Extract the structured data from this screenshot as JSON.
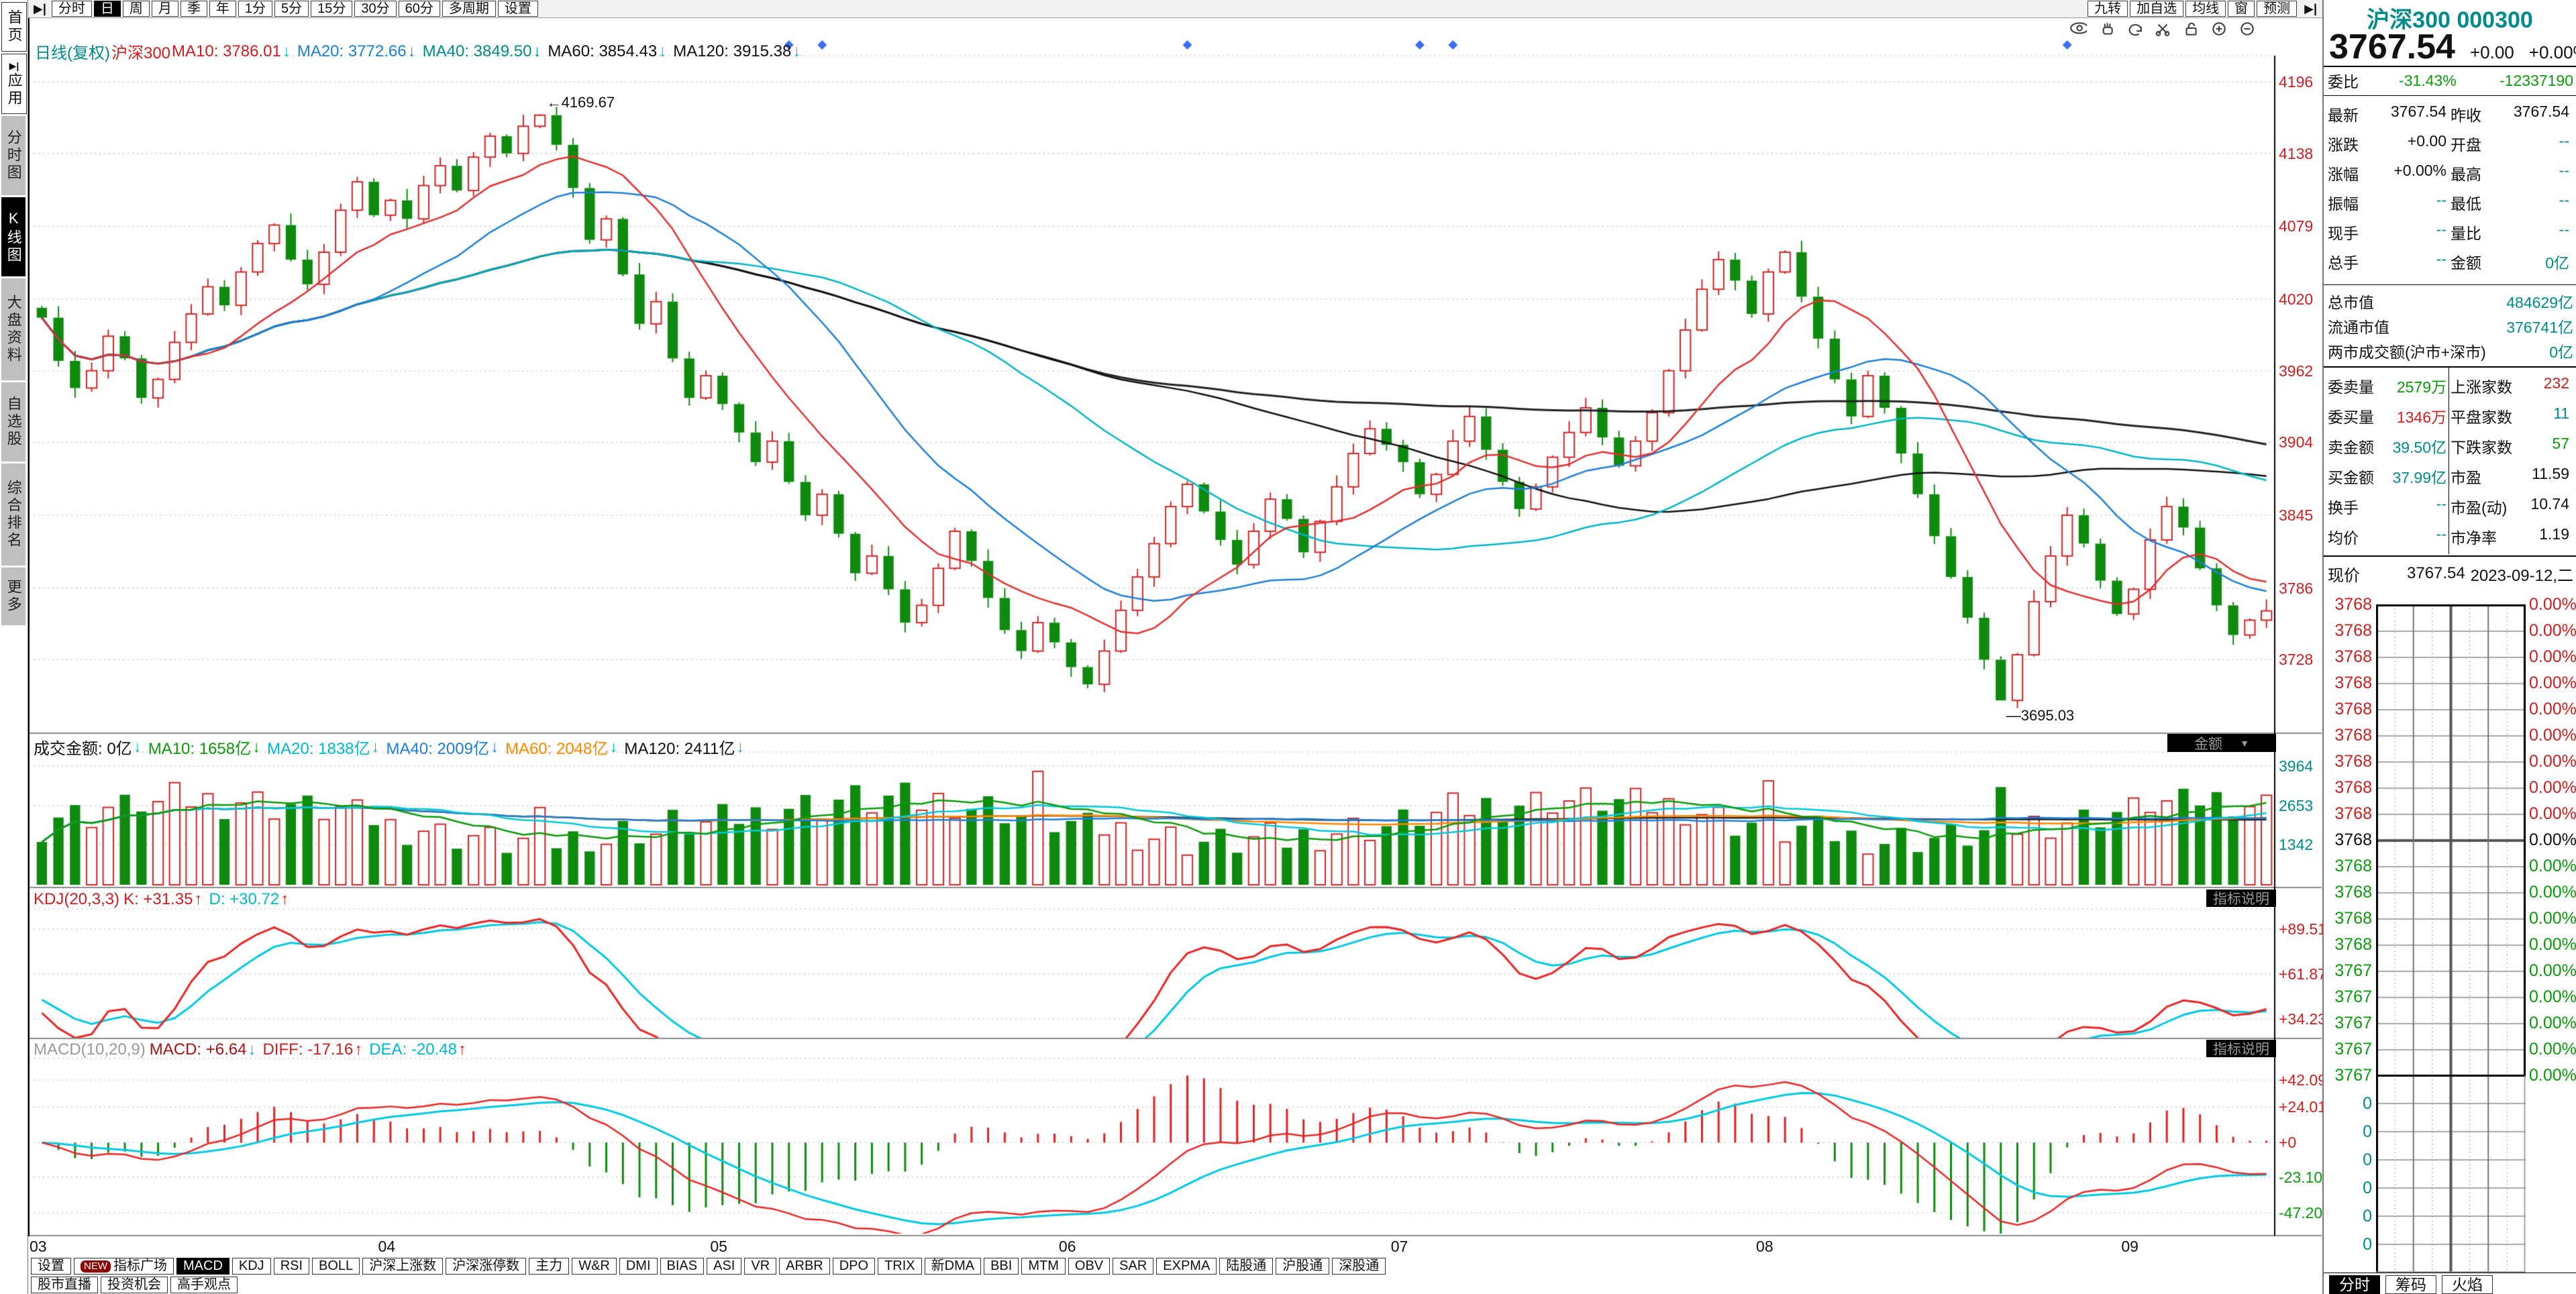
{
  "colors": {
    "red": "#cc2020",
    "green": "#0a9a0a",
    "teal": "#008b8b",
    "black": "#111111",
    "blue": "#1e7fd6",
    "cyan": "#00b8d0",
    "orange": "#ff8800",
    "gray": "#999999",
    "darkred": "#aa1111",
    "up": "#cf2525",
    "down": "#0e8a0e",
    "axis_red": "#cc2020",
    "grid": "#b0b0b0"
  },
  "top_toolbar": {
    "nav_icon": "▶|",
    "tabs": [
      "分时",
      "日",
      "周",
      "月",
      "季",
      "年",
      "1分",
      "5分",
      "15分",
      "30分",
      "60分",
      "多周期",
      "设置"
    ],
    "active_tab": "日",
    "right_tabs": [
      "九转",
      "加自选",
      "均线",
      "窗",
      "预测"
    ],
    "right_icon": "▶|",
    "tool_icons": [
      "eye",
      "hand",
      "undo",
      "scissors",
      "lock",
      "zoom-in",
      "zoom-out"
    ]
  },
  "sidebar": {
    "items": [
      {
        "label": "首页",
        "style": "boxed"
      },
      {
        "label": "应用",
        "style": "boxed",
        "icon": "▶|"
      },
      {
        "label": "分时图",
        "style": "gray"
      },
      {
        "label": "K线图",
        "style": "active"
      },
      {
        "label": "大盘资料",
        "style": "gray"
      },
      {
        "label": "自选股",
        "style": "gray"
      },
      {
        "label": "综合排名",
        "style": "gray"
      },
      {
        "label": "更多",
        "style": "gray"
      }
    ]
  },
  "main_header": {
    "items": [
      {
        "text": "日线(复权)",
        "color": "teal"
      },
      {
        "text": "沪深300",
        "color": "red"
      },
      {
        "text": "MA10: 3786.01",
        "color": "red",
        "arrow": "↓",
        "arrow_color": "cyan"
      },
      {
        "text": "MA20: 3772.66",
        "color": "blue",
        "arrow": "↓",
        "arrow_color": "blue"
      },
      {
        "text": "MA40: 3849.50",
        "color": "teal",
        "arrow": "↓",
        "arrow_color": "teal"
      },
      {
        "text": "MA60: 3854.43",
        "color": "black",
        "arrow": "↓",
        "arrow_color": "cyan"
      },
      {
        "text": "MA120: 3915.38",
        "color": "black",
        "arrow": "↓",
        "arrow_color": "cyan"
      }
    ]
  },
  "indicator_headers": {
    "volume": {
      "items": [
        {
          "text": "成交金额: 0亿",
          "color": "black",
          "arrow": "↓",
          "arrow_color": "cyan"
        },
        {
          "text": "MA10: 1658亿",
          "color": "green",
          "arrow": "↓",
          "arrow_color": "green"
        },
        {
          "text": "MA20: 1838亿",
          "color": "cyan",
          "arrow": "↓",
          "arrow_color": "cyan"
        },
        {
          "text": "MA40: 2009亿",
          "color": "blue",
          "arrow": "↓",
          "arrow_color": "blue"
        },
        {
          "text": "MA60: 2048亿",
          "color": "orange",
          "arrow": "↓",
          "arrow_color": "cyan"
        },
        {
          "text": "MA120: 2411亿",
          "color": "black",
          "arrow": "↓",
          "arrow_color": "cyan"
        }
      ],
      "dropdown": "金额"
    },
    "kdj": {
      "label": "KDJ(20,3,3)",
      "label_color": "red",
      "items": [
        {
          "text": "K: +31.35",
          "color": "red",
          "arrow": "↑",
          "arrow_color": "red"
        },
        {
          "text": "D: +30.72",
          "color": "cyan",
          "arrow": "↑",
          "arrow_color": "red"
        }
      ],
      "badge": "指标说明"
    },
    "macd": {
      "label": "MACD(10,20,9)",
      "label_color": "gray",
      "items": [
        {
          "text": "MACD: +6.64",
          "color": "darkred",
          "arrow": "↓",
          "arrow_color": "cyan"
        },
        {
          "text": "DIFF: -17.16",
          "color": "red",
          "arrow": "↑",
          "arrow_color": "red"
        },
        {
          "text": "DEA: -20.48",
          "color": "cyan",
          "arrow": "↑",
          "arrow_color": "red"
        }
      ],
      "badge": "指标说明"
    }
  },
  "axes": {
    "main": [
      4196,
      4138,
      4079,
      4020,
      3962,
      3904,
      3845,
      3786,
      3728
    ],
    "volume": [
      3964,
      2653,
      1342
    ],
    "kdj": [
      "+89.51",
      "+61.87",
      "+34.23"
    ],
    "kdj_values": [
      89.51,
      61.87,
      34.23
    ],
    "macd": [
      {
        "t": "+42.09",
        "c": "red",
        "v": 42.09
      },
      {
        "t": "+24.01",
        "c": "red",
        "v": 24.01
      },
      {
        "t": "+0",
        "c": "red",
        "v": 0
      },
      {
        "t": "-23.10",
        "c": "green",
        "v": -23.1
      },
      {
        "t": "-47.20",
        "c": "green",
        "v": -47.2
      }
    ]
  },
  "chart_data": {
    "type": "candlestick",
    "symbol": "沪深300",
    "period": "日线(复权)",
    "closes": [
      4005,
      3970,
      3948,
      3962,
      3990,
      3972,
      3940,
      3955,
      3985,
      4008,
      4030,
      4015,
      4042,
      4065,
      4080,
      4052,
      4032,
      4058,
      4092,
      4115,
      4088,
      4100,
      4085,
      4112,
      4128,
      4108,
      4135,
      4152,
      4138,
      4160,
      4169,
      4145,
      4110,
      4068,
      4085,
      4040,
      4000,
      4018,
      3972,
      3940,
      3958,
      3935,
      3912,
      3888,
      3905,
      3872,
      3845,
      3862,
      3830,
      3798,
      3812,
      3785,
      3758,
      3772,
      3802,
      3832,
      3808,
      3778,
      3752,
      3735,
      3758,
      3742,
      3722,
      3708,
      3735,
      3768,
      3795,
      3822,
      3852,
      3870,
      3848,
      3825,
      3805,
      3832,
      3858,
      3842,
      3815,
      3840,
      3868,
      3895,
      3915,
      3902,
      3888,
      3862,
      3878,
      3905,
      3925,
      3898,
      3872,
      3850,
      3868,
      3892,
      3912,
      3932,
      3908,
      3885,
      3905,
      3928,
      3962,
      3995,
      4028,
      4052,
      4035,
      4008,
      4042,
      4058,
      4022,
      3988,
      3955,
      3925,
      3958,
      3932,
      3895,
      3862,
      3828,
      3795,
      3762,
      3728,
      3695,
      3732,
      3775,
      3812,
      3845,
      3822,
      3792,
      3765,
      3785,
      3825,
      3852,
      3835,
      3802,
      3772,
      3748,
      3760,
      3767.54
    ],
    "high_overrides": {
      "30": 4169.67
    },
    "low_overrides": {
      "118": 3695.03
    },
    "months": [
      {
        "label": "03",
        "day": 0
      },
      {
        "label": "04",
        "day": 21
      },
      {
        "label": "05",
        "day": 41
      },
      {
        "label": "06",
        "day": 62
      },
      {
        "label": "07",
        "day": 82
      },
      {
        "label": "08",
        "day": 104
      },
      {
        "label": "09",
        "day": 126
      }
    ],
    "annotations": {
      "high": {
        "text": "←4169.67",
        "day": 30,
        "value": 4169.67
      },
      "low": {
        "text": "—3695.03",
        "day": 118,
        "value": 3695.03
      }
    },
    "diamond_days": [
      45,
      47,
      69,
      83,
      85,
      122
    ],
    "ylim": [
      3675,
      4215
    ],
    "volume_ylim": [
      0,
      4390
    ],
    "kdj_params": "20,3,3",
    "macd_params": "10,20,9"
  },
  "bottom_bar": {
    "row1": [
      {
        "label": "设置"
      },
      {
        "label": "指标广场",
        "badge": "NEW"
      },
      {
        "label": "MACD",
        "active": true
      },
      {
        "label": "KDJ"
      },
      {
        "label": "RSI"
      },
      {
        "label": "BOLL"
      },
      {
        "label": "沪深上涨数"
      },
      {
        "label": "沪深涨停数"
      },
      {
        "label": "主力"
      },
      {
        "label": "W&R"
      },
      {
        "label": "DMI"
      },
      {
        "label": "BIAS"
      },
      {
        "label": "ASI"
      },
      {
        "label": "VR"
      },
      {
        "label": "ARBR"
      },
      {
        "label": "DPO"
      },
      {
        "label": "TRIX"
      },
      {
        "label": "新DMA"
      },
      {
        "label": "BBI"
      },
      {
        "label": "MTM"
      },
      {
        "label": "OBV"
      },
      {
        "label": "SAR"
      },
      {
        "label": "EXPMA"
      },
      {
        "label": "陆股通"
      },
      {
        "label": "沪股通"
      },
      {
        "label": "深股通"
      }
    ],
    "row2": [
      {
        "label": "股市直播"
      },
      {
        "label": "投资机会"
      },
      {
        "label": "高手观点"
      }
    ]
  },
  "right_panel": {
    "stock_name": "沪深300",
    "stock_code": "000300",
    "price": "3767.54",
    "change": "+0.00",
    "change_pct": "+0.00%",
    "weibi": {
      "label": "委比",
      "value": "-31.43%",
      "diff": "-12337190"
    },
    "quote_rows": [
      [
        {
          "l": "最新",
          "v": "3767.54",
          "c": "black"
        },
        {
          "l": "昨收",
          "v": "3767.54",
          "c": "black"
        }
      ],
      [
        {
          "l": "涨跌",
          "v": "+0.00",
          "c": "black"
        },
        {
          "l": "开盘",
          "v": "--",
          "c": "teal"
        }
      ],
      [
        {
          "l": "涨幅",
          "v": "+0.00%",
          "c": "black"
        },
        {
          "l": "最高",
          "v": "--",
          "c": "teal"
        }
      ],
      [
        {
          "l": "振幅",
          "v": "--",
          "c": "teal"
        },
        {
          "l": "最低",
          "v": "--",
          "c": "teal"
        }
      ],
      [
        {
          "l": "现手",
          "v": "--",
          "c": "teal"
        },
        {
          "l": "量比",
          "v": "--",
          "c": "teal"
        }
      ],
      [
        {
          "l": "总手",
          "v": "--",
          "c": "teal"
        },
        {
          "l": "金额",
          "v": "0亿",
          "c": "teal"
        }
      ]
    ],
    "cap_rows": [
      {
        "l": "总市值",
        "v": "484629亿",
        "c": "teal"
      },
      {
        "l": "流通市值",
        "v": "376741亿",
        "c": "teal"
      },
      {
        "l": "两市成交额(沪市+深市)",
        "v": "0亿",
        "c": "teal"
      }
    ],
    "detail_rows": [
      [
        {
          "l": "委卖量",
          "v": "2579万",
          "c": "green"
        },
        {
          "l": "上涨家数",
          "v": "232",
          "c": "red"
        }
      ],
      [
        {
          "l": "委买量",
          "v": "1346万",
          "c": "red"
        },
        {
          "l": "平盘家数",
          "v": "11",
          "c": "teal"
        }
      ],
      [
        {
          "l": "卖金额",
          "v": "39.50亿",
          "c": "teal"
        },
        {
          "l": "下跌家数",
          "v": "57",
          "c": "green"
        }
      ],
      [
        {
          "l": "买金额",
          "v": "37.99亿",
          "c": "teal"
        },
        {
          "l": "市盈",
          "v": "11.59",
          "c": "black"
        }
      ],
      [
        {
          "l": "换手",
          "v": "--",
          "c": "teal"
        },
        {
          "l": "市盈(动)",
          "v": "10.74",
          "c": "black"
        }
      ],
      [
        {
          "l": "均价",
          "v": "--",
          "c": "teal"
        },
        {
          "l": "市净率",
          "v": "1.19",
          "c": "black"
        }
      ]
    ],
    "current_row": {
      "l": "现价",
      "v": "3767.54",
      "date": "2023-09-12,二"
    },
    "ladder": {
      "red_label": "3768",
      "red_count": 9,
      "black_label": "3768",
      "green_labels": [
        "3768",
        "3768",
        "3768",
        "3768",
        "3767",
        "3767",
        "3767",
        "3767",
        "3767"
      ],
      "pct": "0.00%",
      "volume_zero": "0",
      "volume_zero_count": 6
    },
    "tabs": [
      {
        "label": "分时",
        "active": true
      },
      {
        "label": "筹码",
        "active": false
      },
      {
        "label": "火焰",
        "active": false
      }
    ]
  }
}
